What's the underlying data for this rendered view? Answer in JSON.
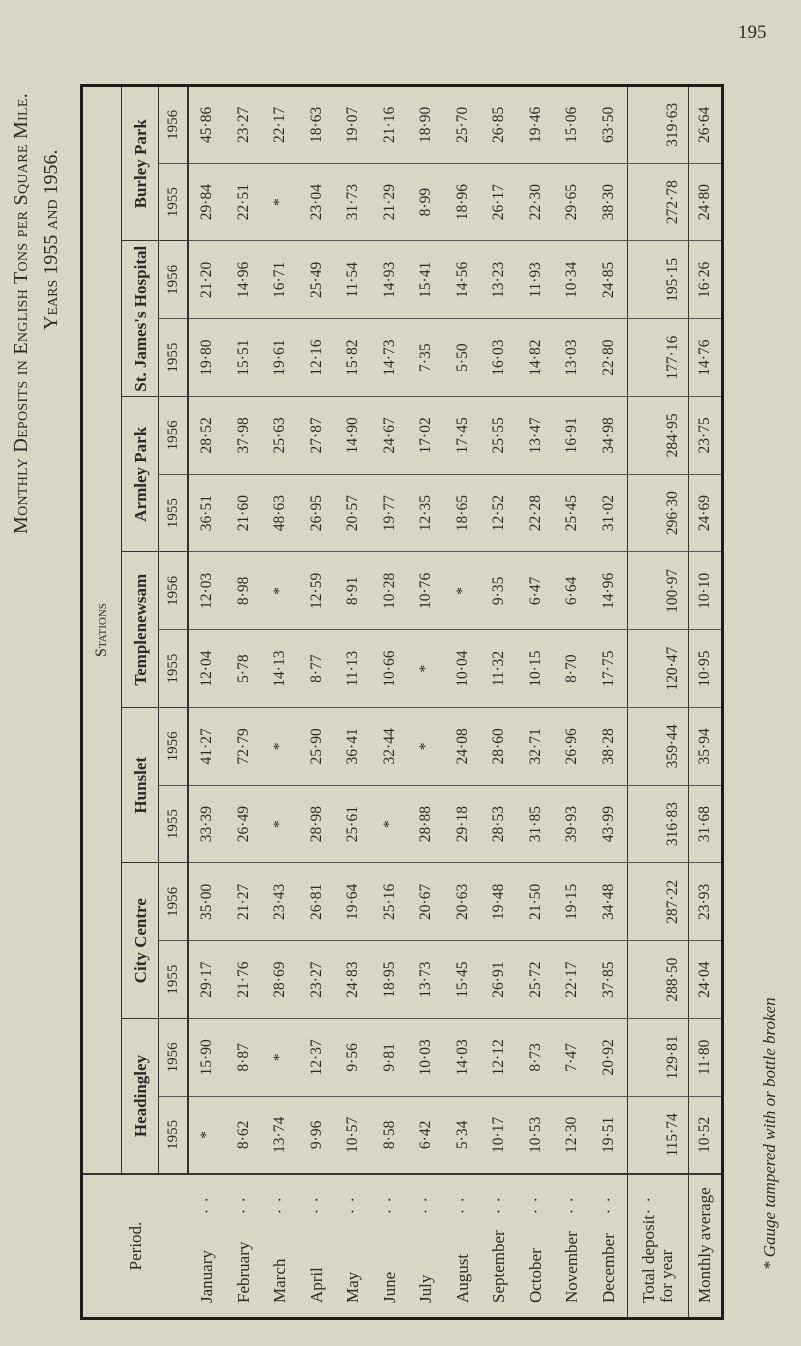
{
  "page_number": "195",
  "title": "Monthly Deposits in English Tons per Square Mile.",
  "subtitle": "Years 1955 and 1956.",
  "stations_header": "Stations",
  "period_header": "Period.",
  "months": [
    "January",
    "February",
    "March",
    "April",
    "May",
    "June",
    "July",
    "August",
    "September",
    "October",
    "November",
    "December"
  ],
  "total_label": "Total deposit for year",
  "average_label": "Monthly average",
  "stations": [
    {
      "name": "Headingley",
      "columns": [
        {
          "year": "1955",
          "monthly": [
            "*",
            "8·62",
            "13·74",
            "9·96",
            "10·57",
            "8·58",
            "6·42",
            "5·34",
            "10·17",
            "10·53",
            "12·30",
            "19·51"
          ],
          "total": "115·74",
          "average": "10·52"
        },
        {
          "year": "1956",
          "monthly": [
            "15·90",
            "8·87",
            "*",
            "12·37",
            "9·56",
            "9·81",
            "10·03",
            "14·03",
            "12·12",
            "8·73",
            "7·47",
            "20·92"
          ],
          "total": "129·81",
          "average": "11·80"
        }
      ]
    },
    {
      "name": "City Centre",
      "columns": [
        {
          "year": "1955",
          "monthly": [
            "29·17",
            "21·76",
            "28·69",
            "23·27",
            "24·83",
            "18·95",
            "13·73",
            "15·45",
            "26·91",
            "25·72",
            "22·17",
            "37·85"
          ],
          "total": "288·50",
          "average": "24·04"
        },
        {
          "year": "1956",
          "monthly": [
            "35·00",
            "21·27",
            "23·43",
            "26·81",
            "19·64",
            "25·16",
            "20·67",
            "20·63",
            "19·48",
            "21·50",
            "19·15",
            "34·48"
          ],
          "total": "287·22",
          "average": "23·93"
        }
      ]
    },
    {
      "name": "Hunslet",
      "columns": [
        {
          "year": "1955",
          "monthly": [
            "33·39",
            "26·49",
            "*",
            "28·98",
            "25·61",
            "*",
            "28·88",
            "29·18",
            "28·53",
            "31·85",
            "39·93",
            "43·99"
          ],
          "total": "316·83",
          "average": "31·68"
        },
        {
          "year": "1956",
          "monthly": [
            "41·27",
            "72·79",
            "*",
            "25·90",
            "36·41",
            "32·44",
            "*",
            "24·08",
            "28·60",
            "32·71",
            "26·96",
            "38·28"
          ],
          "total": "359·44",
          "average": "35·94"
        }
      ]
    },
    {
      "name": "Templenewsam",
      "columns": [
        {
          "year": "1955",
          "monthly": [
            "12·04",
            "5·78",
            "14·13",
            "8·77",
            "11·13",
            "10·66",
            "*",
            "10·04",
            "11·32",
            "10·15",
            "8·70",
            "17·75"
          ],
          "total": "120·47",
          "average": "10·95"
        },
        {
          "year": "1956",
          "monthly": [
            "12·03",
            "8·98",
            "*",
            "12·59",
            "8·91",
            "10·28",
            "10·76",
            "*",
            "9·35",
            "6·47",
            "6·64",
            "14·96"
          ],
          "total": "100·97",
          "average": "10·10"
        }
      ]
    },
    {
      "name": "Armley Park",
      "columns": [
        {
          "year": "1955",
          "monthly": [
            "36·51",
            "21·60",
            "48·63",
            "26·95",
            "20·57",
            "19·77",
            "12·35",
            "18·65",
            "12·52",
            "22·28",
            "25·45",
            "31·02"
          ],
          "total": "296·30",
          "average": "24·69"
        },
        {
          "year": "1956",
          "monthly": [
            "28·52",
            "37·98",
            "25·63",
            "27·87",
            "14·90",
            "24·67",
            "17·02",
            "17·45",
            "25·55",
            "13·47",
            "16·91",
            "34·98"
          ],
          "total": "284·95",
          "average": "23·75"
        }
      ]
    },
    {
      "name": "St. James's Hospital",
      "columns": [
        {
          "year": "1955",
          "monthly": [
            "19·80",
            "15·51",
            "19·61",
            "12·16",
            "15·82",
            "14·73",
            "7·35",
            "5·50",
            "16·03",
            "14·82",
            "13·03",
            "22·80"
          ],
          "total": "177·16",
          "average": "14·76"
        },
        {
          "year": "1956",
          "monthly": [
            "21·20",
            "14·96",
            "16·71",
            "25·49",
            "11·54",
            "14·93",
            "15·41",
            "14·56",
            "13·23",
            "11·93",
            "10·34",
            "24·85"
          ],
          "total": "195·15",
          "average": "16·26"
        }
      ]
    },
    {
      "name": "Burley Park",
      "columns": [
        {
          "year": "1955",
          "monthly": [
            "29·84",
            "22·51",
            "*",
            "23·04",
            "31·73",
            "21·29",
            "8·99",
            "18·96",
            "26·17",
            "22·30",
            "29·65",
            "38·30"
          ],
          "total": "272·78",
          "average": "24·80"
        },
        {
          "year": "1956",
          "monthly": [
            "45·86",
            "23·27",
            "22·17",
            "18·63",
            "19·07",
            "21·16",
            "18·90",
            "25·70",
            "26·85",
            "19·46",
            "15·06",
            "63·50"
          ],
          "total": "319·63",
          "average": "26·64"
        }
      ]
    }
  ],
  "footnote": "* Gauge tampered with or bottle broken"
}
